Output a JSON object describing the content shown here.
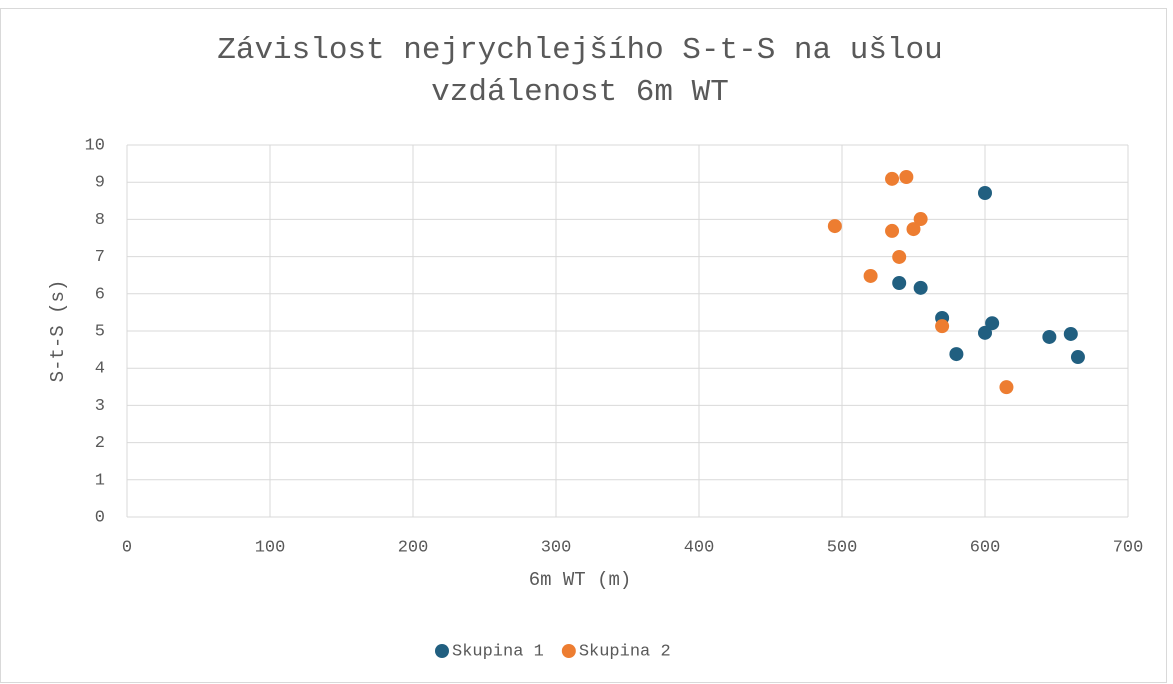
{
  "chart_data": {
    "type": "scatter",
    "title": "Závislost nejrychlejšího S-t-S na ušlou vzdálenost 6m WT",
    "title_lines": [
      "Závislost nejrychlejšího S-t-S na ušlou",
      "vzdálenost 6m WT"
    ],
    "xlabel": "6m WT (m)",
    "ylabel": "S-t-S (s)",
    "xlim": [
      0,
      700
    ],
    "xticks": [
      0,
      100,
      200,
      300,
      400,
      500,
      600,
      700
    ],
    "ylim": [
      0,
      10
    ],
    "yticks": [
      0,
      1,
      2,
      3,
      4,
      5,
      6,
      7,
      8,
      9,
      10
    ],
    "grid": true,
    "legend": "bottom",
    "series": [
      {
        "name": "Skupina 1",
        "color": "#215f80",
        "x": [
          600,
          540,
          555,
          570,
          605,
          600,
          580,
          645,
          660,
          665
        ],
        "values": [
          8.71,
          6.29,
          6.16,
          5.35,
          5.21,
          4.95,
          4.38,
          4.84,
          4.92,
          4.3
        ]
      },
      {
        "name": "Skupina 2",
        "color": "#ed7d31",
        "x": [
          495,
          535,
          545,
          555,
          535,
          550,
          540,
          520,
          570,
          615
        ],
        "values": [
          7.82,
          9.09,
          9.14,
          8.01,
          7.69,
          7.74,
          6.99,
          6.48,
          5.13,
          3.49
        ]
      }
    ]
  }
}
